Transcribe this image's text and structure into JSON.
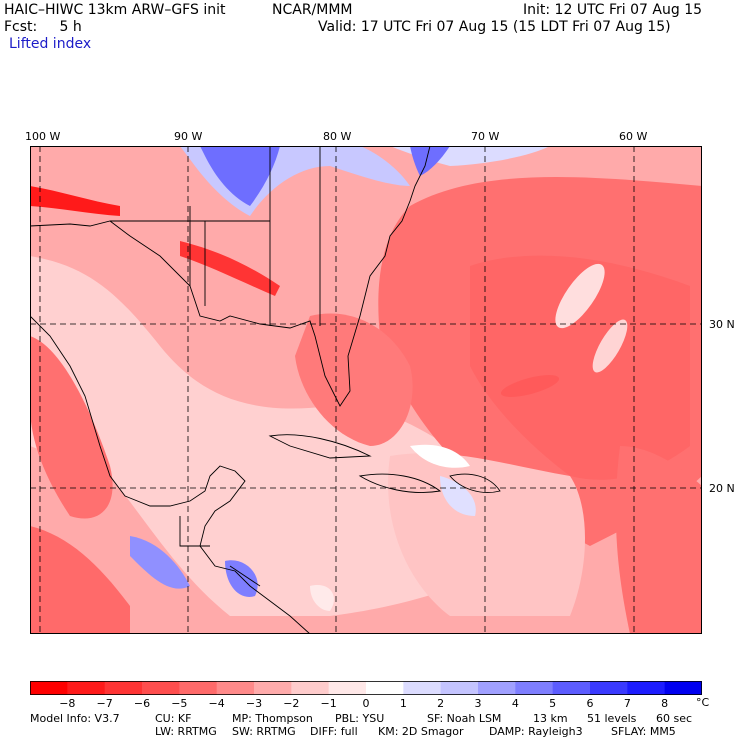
{
  "header": {
    "model": "HAIC–HIWC 13km ARW–GFS init",
    "center": "NCAR/MMM",
    "init": "Init: 12 UTC Fri 07 Aug 15",
    "fcst": "Fcst:     5 h",
    "valid": "Valid: 17 UTC Fri 07 Aug 15 (15 LDT Fri 07 Aug 15)",
    "field": "Lifted index"
  },
  "lon_labels": [
    "100 W",
    "90 W",
    "80 W",
    "70 W",
    "60 W"
  ],
  "lat_labels": [
    "30 N",
    "20 N"
  ],
  "colorbar": {
    "labels": [
      "−8",
      "−7",
      "−6",
      "−5",
      "−4",
      "−3",
      "−2",
      "−1",
      "0",
      "1",
      "2",
      "3",
      "4",
      "5",
      "6",
      "7",
      "8"
    ],
    "unit": "°C",
    "colors": [
      "#ff0000",
      "#ff1a1a",
      "#ff3434",
      "#ff4e4e",
      "#ff6a6a",
      "#ff8a8a",
      "#ffabab",
      "#ffcccc",
      "#ffe8e8",
      "#ffffff",
      "#dcdcff",
      "#c4c4ff",
      "#a0a0ff",
      "#7e7eff",
      "#5c5cff",
      "#3a3aff",
      "#1c1cff",
      "#0000f0"
    ]
  },
  "model_info": {
    "line1_label": "Model Info: V3.7",
    "cu": "CU: KF",
    "mp": "MP: Thompson",
    "pbl": "PBL: YSU",
    "sf": "SF: Noah LSM",
    "res": "13 km",
    "levels": "51 levels",
    "dt": "60 sec",
    "lw": "LW: RRTMG",
    "sw": "SW: RRTMG",
    "diff": "DIFF: full",
    "km": "KM: 2D Smagor",
    "damp": "DAMP: Rayleigh3",
    "sflay": "SFLAY: MM5"
  }
}
